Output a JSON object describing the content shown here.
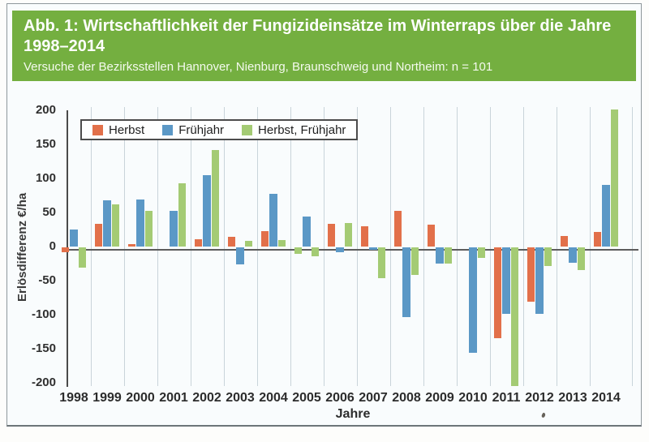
{
  "header": {
    "title_line1": "Abb. 1: Wirtschaftlichkeit der Fungizideinsätze im Winterraps über die Jahre",
    "title_line2": "1998–2014",
    "subtitle": "Versuche der Bezirksstellen Hannover, Nienburg, Braunschweig und Northeim: n = 101"
  },
  "chart_data": {
    "type": "bar",
    "title": "Wirtschaftlichkeit der Fungizideinsätze im Winterraps 1998–2014",
    "xlabel": "Jahre",
    "ylabel": "Erlösdifferenz €/ha",
    "ylim": [
      -200,
      200
    ],
    "ytick_interval": 50,
    "grid": "vertical-only",
    "legend_position": "top-left-inside-plot",
    "categories": [
      "1998",
      "1999",
      "2000",
      "2001",
      "2002",
      "2003",
      "2004",
      "2005",
      "2006",
      "2007",
      "2008",
      "2009",
      "2010",
      "2011",
      "2012",
      "2013",
      "2014"
    ],
    "series": [
      {
        "name": "Herbst",
        "color": "#e2704a",
        "values": [
          -7,
          33,
          3,
          null,
          11,
          14,
          23,
          -9,
          33,
          30,
          53,
          32,
          null,
          -134,
          -80,
          15,
          22
        ]
      },
      {
        "name": "Frühjahr",
        "color": "#5b98c6",
        "values": [
          25,
          68,
          69,
          52,
          105,
          -25,
          77,
          44,
          -7,
          -3,
          -103,
          -24,
          -155,
          -98,
          -98,
          -23,
          91
        ]
      },
      {
        "name": "Herbst, Frühjahr",
        "color": "#a4cb74",
        "values": [
          -30,
          62,
          52,
          93,
          142,
          8,
          10,
          -13,
          34,
          -45,
          -40,
          -24,
          -15,
          -204,
          -28,
          -33,
          202
        ]
      }
    ],
    "color_anomalies": [
      {
        "category": "2005",
        "series": "Herbst",
        "rendered_color": "#a4cb74"
      }
    ]
  },
  "colors": {
    "header_green": "#74af40",
    "gridline": "#c9d4da",
    "axis": "#4a4a4a"
  }
}
